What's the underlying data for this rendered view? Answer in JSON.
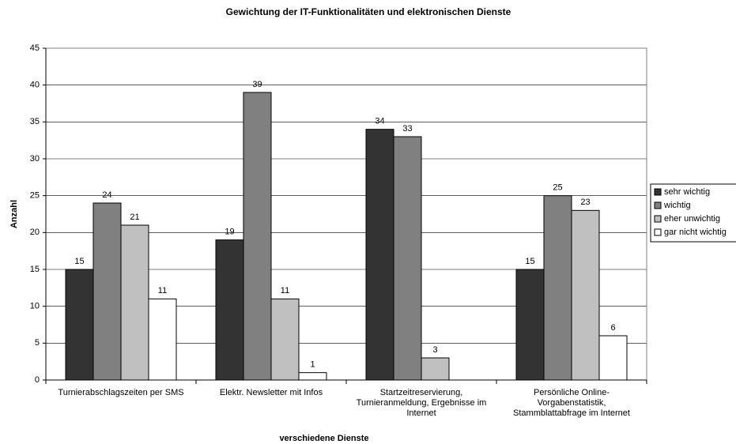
{
  "chart_data": {
    "type": "bar",
    "title": "Gewichtung der IT-Funktionalitäten und elektronischen Dienste",
    "x_label": "verschiedene Dienste",
    "y_label": "Anzahl",
    "categories": [
      "Turnierabschlagszeiten per SMS",
      "Elektr. Newsletter mit Infos",
      "Startzeitreservierung, Turnieranmeldung, Ergebnisse im Internet",
      "Persönliche Online-Vorgabenstatistik, Stammblattabfrage im Internet"
    ],
    "series": [
      {
        "name": "sehr wichtig",
        "color": "#333333",
        "values": [
          15,
          19,
          34,
          15
        ]
      },
      {
        "name": "wichtig",
        "color": "#808080",
        "values": [
          24,
          39,
          33,
          25
        ]
      },
      {
        "name": "eher unwichtig",
        "color": "#c0c0c0",
        "values": [
          21,
          11,
          3,
          23
        ]
      },
      {
        "name": "gar nicht wichtig",
        "color": "#ffffff",
        "values": [
          11,
          1,
          null,
          6
        ]
      }
    ],
    "ylim": [
      0,
      45
    ],
    "yticks": [
      0,
      5,
      10,
      15,
      20,
      25,
      30,
      35,
      40,
      45
    ],
    "grid": true,
    "legend": "right",
    "data_labels": true
  }
}
